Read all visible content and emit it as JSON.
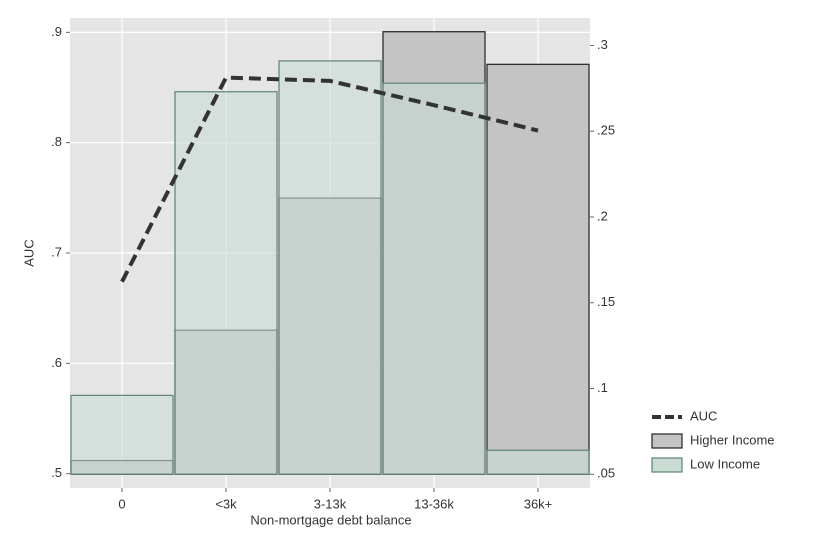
{
  "chart_data": {
    "type": "bar",
    "x_label": "Non-mortgage debt balance",
    "y_label": "AUC",
    "categories": [
      "0",
      "<3k",
      "3-13k",
      "13-36k",
      "36k+"
    ],
    "series": [
      {
        "name": "AUC",
        "type": "line",
        "axis": "y",
        "color": "#333333",
        "values": [
          0.674,
          0.859,
          0.856,
          0.834,
          0.811
        ]
      },
      {
        "name": "Higher Income",
        "type": "bar",
        "axis": "y2",
        "color": "#c4c4c4",
        "values": [
          0.058,
          0.134,
          0.211,
          0.308,
          0.289
        ]
      },
      {
        "name": "Low Income",
        "type": "bar",
        "axis": "y2",
        "color": "#c9dbd3",
        "values": [
          0.096,
          0.273,
          0.291,
          0.278,
          0.064
        ]
      }
    ],
    "ylim": [
      0.487,
      0.913
    ],
    "yticks": [
      {
        "value": 0.5,
        "label": ".5"
      },
      {
        "value": 0.6,
        "label": ".6"
      },
      {
        "value": 0.7,
        "label": ".7"
      },
      {
        "value": 0.8,
        "label": ".8"
      },
      {
        "value": 0.9,
        "label": ".9"
      }
    ],
    "y2lim": [
      0.042,
      0.316
    ],
    "y2ticks": [
      {
        "value": 0.05,
        "label": ".05"
      },
      {
        "value": 0.1,
        "label": ".1"
      },
      {
        "value": 0.15,
        "label": ".15"
      },
      {
        "value": 0.2,
        "label": ".2"
      },
      {
        "value": 0.25,
        "label": ".25"
      },
      {
        "value": 0.3,
        "label": ".3"
      }
    ],
    "grid": true
  }
}
